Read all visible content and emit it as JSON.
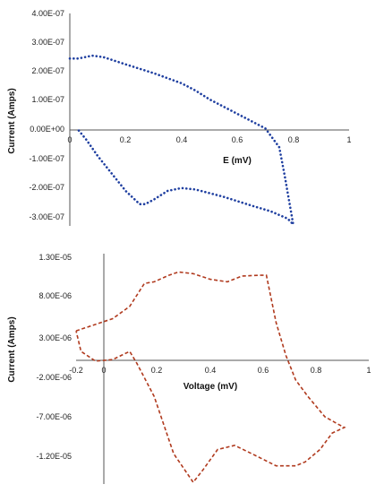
{
  "chart_data": [
    {
      "type": "line",
      "title": "",
      "xlabel": "E (mV)",
      "ylabel": "Current (Amps)",
      "xlim": [
        0,
        1
      ],
      "ylim": [
        -3.3e-07,
        4e-07
      ],
      "x_ticks": [
        "0",
        "0.2",
        "0.4",
        "0.6",
        "0.8",
        "1"
      ],
      "y_ticks": [
        "4.00E-07",
        "3.00E-07",
        "2.00E-07",
        "1.00E-07",
        "0.00E+00",
        "-1.00E-07",
        "-2.00E-07",
        "-3.00E-07"
      ],
      "line_style": "dotted",
      "color": "#1f3fa0",
      "grid": false,
      "series": [
        {
          "x": [
            0.0,
            0.03,
            0.08,
            0.12,
            0.2,
            0.3,
            0.4,
            0.45,
            0.5,
            0.55,
            0.6,
            0.65,
            0.7,
            0.75,
            0.77,
            0.8,
            0.78,
            0.72,
            0.65,
            0.55,
            0.45,
            0.4,
            0.35,
            0.3,
            0.27,
            0.25,
            0.2,
            0.15,
            0.1,
            0.06,
            0.03
          ],
          "y": [
            2.45e-07,
            2.45e-07,
            2.55e-07,
            2.5e-07,
            2.25e-07,
            1.95e-07,
            1.6e-07,
            1.35e-07,
            1.05e-07,
            8e-08,
            5.5e-08,
            3e-08,
            5e-09,
            -6e-08,
            -1.6e-07,
            -3.25e-07,
            -3.05e-07,
            -2.8e-07,
            -2.6e-07,
            -2.3e-07,
            -2.05e-07,
            -2e-07,
            -2.1e-07,
            -2.4e-07,
            -2.55e-07,
            -2.55e-07,
            -2.1e-07,
            -1.5e-07,
            -9e-08,
            -3.5e-08,
            0.0
          ]
        }
      ]
    },
    {
      "type": "line",
      "title": "",
      "xlabel": "Voltage (mV)",
      "ylabel": "Current (Amps)",
      "xlim": [
        -0.2,
        1
      ],
      "ylim": [
        -1.45e-05,
        1.3e-05
      ],
      "x_ticks": [
        "-0.2",
        "0",
        "0.2",
        "0.4",
        "0.6",
        "0.8",
        "1"
      ],
      "y_ticks": [
        "1.30E-05",
        "8.00E-06",
        "3.00E-06",
        "-2.00E-06",
        "-7.00E-06",
        "-1.20E-05"
      ],
      "line_style": "dashed",
      "color": "#b03a1e",
      "grid": false,
      "series": [
        {
          "x": [
            -0.2,
            -0.15,
            -0.05,
            0.02,
            0.08,
            0.12,
            0.18,
            0.22,
            0.28,
            0.35,
            0.42,
            0.48,
            0.55,
            0.58,
            0.62,
            0.66,
            0.7,
            0.75,
            0.82,
            0.88,
            0.9,
            0.85,
            0.8,
            0.74,
            0.7,
            0.62,
            0.52,
            0.45,
            0.38,
            0.32,
            0.28,
            0.2,
            0.12,
            0.05,
            0.02,
            -0.05,
            -0.12,
            -0.18,
            -0.2
          ],
          "y": [
            4e-06,
            4.5e-06,
            5.5e-06,
            7e-06,
            9.8e-06,
            1e-05,
            1.08e-05,
            1.12e-05,
            1.1e-05,
            1.03e-05,
            1e-05,
            1.07e-05,
            1.08e-05,
            1.08e-05,
            5e-06,
            1e-06,
            -2e-06,
            -4e-06,
            -6.5e-06,
            -7.5e-06,
            -7.8e-06,
            -8.5e-06,
            -1.05e-05,
            -1.2e-05,
            -1.25e-05,
            -1.25e-05,
            -1.1e-05,
            -1e-05,
            -1.05e-05,
            -1.3e-05,
            -1.45e-05,
            -1.1e-05,
            -4e-06,
            0.0,
            1.5e-06,
            5e-07,
            3e-07,
            1.5e-06,
            4e-06
          ]
        }
      ]
    }
  ]
}
